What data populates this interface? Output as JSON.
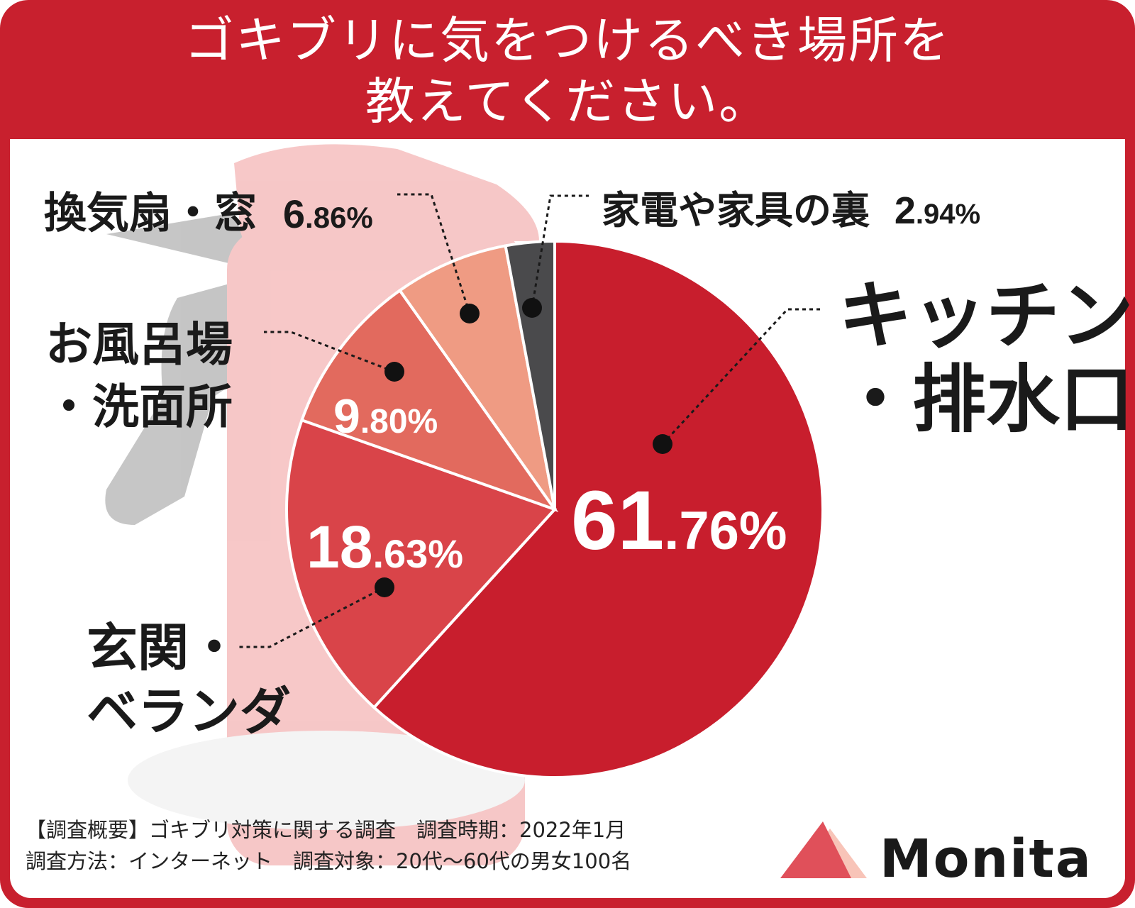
{
  "title": {
    "line1": "ゴキブリに気をつけるべき場所を",
    "line2": "教えてください。"
  },
  "chart_data": {
    "type": "pie",
    "title": "ゴキブリに気をつけるべき場所を教えてください。",
    "slices": [
      {
        "name": "キッチン・排水口",
        "value": 61.76,
        "label_int": "61",
        "label_dec": ".76%",
        "color": "#c81e2d"
      },
      {
        "name": "玄関・ベランダ",
        "value": 18.63,
        "label_int": "18",
        "label_dec": ".63%",
        "color": "#d94449"
      },
      {
        "name": "お風呂場・洗面所",
        "value": 9.8,
        "label_int": "9",
        "label_dec": ".80%",
        "color": "#e26a5e"
      },
      {
        "name": "換気扇・窓",
        "value": 6.86,
        "label_int": "6",
        "label_dec": ".86%",
        "color": "#ef9b83"
      },
      {
        "name": "家電や家具の裏",
        "value": 2.94,
        "label_int": "2",
        "label_dec": ".94%",
        "color": "#4a4a4c"
      }
    ]
  },
  "labels": {
    "kitchen_l1": "キッチン",
    "kitchen_l2": "・排水口",
    "entrance_l1": "玄関・",
    "entrance_l2": "ベランダ",
    "bath_l1": "お風呂場",
    "bath_l2": "・洗面所",
    "vent": "換気扇・窓",
    "vent_pct_int": "6",
    "vent_pct_dec": ".86%",
    "behind": "家電や家具の裏",
    "behind_pct_int": "2",
    "behind_pct_dec": ".94%"
  },
  "footer": {
    "line1": "【調査概要】ゴキブリ対策に関する調査　調査時期：2022年1月",
    "line2": "調査方法：インターネット　調査対象：20代〜60代の男女100名"
  },
  "logo": {
    "text": "Monita"
  }
}
